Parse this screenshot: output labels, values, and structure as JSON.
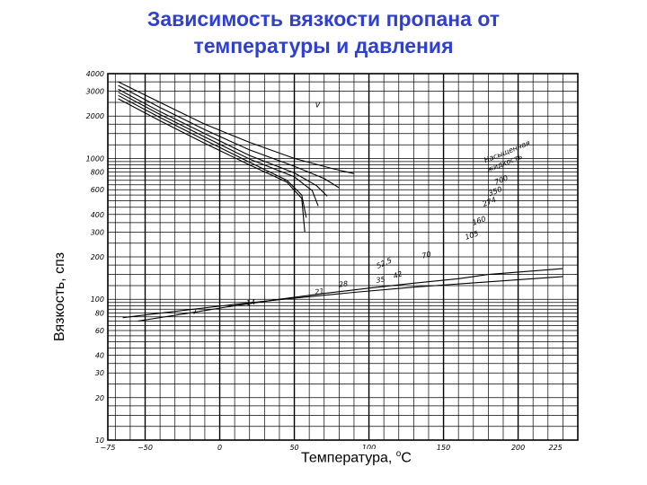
{
  "chart_data": {
    "type": "line",
    "title_line1": "Зависимость вязкости пропана от",
    "title_line2": "температуры и давления",
    "ylabel": "Вязкость, спз",
    "xlabel_main": "Температура, ",
    "xlabel_sup": "o",
    "xlabel_unit": "C",
    "y_scale": "log",
    "ylim": [
      10,
      4000
    ],
    "xlim": [
      -75,
      240
    ],
    "grid": true,
    "x_ticks": [
      {
        "v": -75,
        "label": "−75"
      },
      {
        "v": -50,
        "label": "−50"
      },
      {
        "v": 0,
        "label": "0"
      },
      {
        "v": 50,
        "label": "50"
      },
      {
        "v": 100,
        "label": "100"
      },
      {
        "v": 150,
        "label": "150"
      },
      {
        "v": 200,
        "label": "200"
      },
      {
        "v": 225,
        "label": "225"
      }
    ],
    "y_ticks": [
      {
        "v": 4000,
        "label": "4000"
      },
      {
        "v": 3000,
        "label": "3000"
      },
      {
        "v": 2000,
        "label": "2000"
      },
      {
        "v": 1000,
        "label": "1000"
      },
      {
        "v": 800,
        "label": "800"
      },
      {
        "v": 600,
        "label": "600"
      },
      {
        "v": 400,
        "label": "400"
      },
      {
        "v": 300,
        "label": "300"
      },
      {
        "v": 200,
        "label": "200"
      },
      {
        "v": 100,
        "label": "100"
      },
      {
        "v": 80,
        "label": "80"
      },
      {
        "v": 60,
        "label": "60"
      },
      {
        "v": 40,
        "label": "40"
      },
      {
        "v": 30,
        "label": "30"
      },
      {
        "v": 20,
        "label": "20"
      },
      {
        "v": 10,
        "label": "10"
      }
    ],
    "annotations": [
      {
        "text": "Насыщенная",
        "x": 178,
        "y": 930,
        "rot": -22
      },
      {
        "text": "жидкость",
        "x": 180,
        "y": 800,
        "rot": -22
      },
      {
        "text": "700",
        "x": 185,
        "y": 650,
        "rot": -22
      },
      {
        "text": "350",
        "x": 181,
        "y": 540,
        "rot": -22
      },
      {
        "text": "274",
        "x": 177,
        "y": 455,
        "rot": -22
      },
      {
        "text": "160",
        "x": 170,
        "y": 335,
        "rot": -20
      },
      {
        "text": "105",
        "x": 165,
        "y": 265,
        "rot": -18
      },
      {
        "text": "70",
        "x": 136,
        "y": 195,
        "rot": -15
      },
      {
        "text": "52,5",
        "x": 106,
        "y": 165,
        "rot": -25
      },
      {
        "text": "42",
        "x": 117,
        "y": 140,
        "rot": -20
      },
      {
        "text": "35",
        "x": 105,
        "y": 131,
        "rot": -8
      },
      {
        "text": "28",
        "x": 80,
        "y": 122,
        "rot": -8
      },
      {
        "text": "21",
        "x": 64,
        "y": 108,
        "rot": -8
      },
      {
        "text": "14",
        "x": 18,
        "y": 90,
        "rot": -8
      },
      {
        "text": "7",
        "x": -18,
        "y": 78,
        "rot": -8
      },
      {
        "text": "V",
        "x": 64,
        "y": 2300,
        "rot": 0
      }
    ],
    "series": [
      {
        "name": "",
        "x": [
          -68,
          -40,
          -10,
          20,
          50,
          75,
          90
        ],
        "y": [
          3500,
          2500,
          1750,
          1300,
          1000,
          850,
          780
        ]
      },
      {
        "name": "",
        "x": [
          -68,
          -40,
          -10,
          20,
          50,
          70,
          80
        ],
        "y": [
          3300,
          2300,
          1600,
          1150,
          880,
          720,
          620
        ]
      },
      {
        "name": "",
        "x": [
          -68,
          -40,
          -10,
          20,
          50,
          65,
          72
        ],
        "y": [
          3100,
          2150,
          1500,
          1050,
          790,
          640,
          540
        ]
      },
      {
        "name": "",
        "x": [
          -68,
          -40,
          -10,
          20,
          50,
          62,
          66
        ],
        "y": [
          2950,
          2050,
          1420,
          990,
          740,
          590,
          460
        ]
      },
      {
        "name": "",
        "x": [
          -68,
          -40,
          -10,
          20,
          45,
          55,
          58
        ],
        "y": [
          2800,
          1950,
          1350,
          940,
          700,
          550,
          380
        ]
      },
      {
        "name": "",
        "x": [
          -68,
          -40,
          -10,
          20,
          45,
          55,
          57
        ],
        "y": [
          2650,
          1850,
          1280,
          900,
          680,
          520,
          300
        ]
      },
      {
        "name": "",
        "x": [
          -55,
          -20,
          10,
          40,
          70,
          100,
          130,
          160,
          180,
          230
        ],
        "y": [
          70,
          80,
          90,
          100,
          110,
          120,
          130,
          140,
          150,
          165
        ]
      },
      {
        "name": "",
        "x": [
          -65,
          -30,
          10,
          50,
          90,
          130,
          230
        ],
        "y": [
          74,
          82,
          92,
          102,
          112,
          122,
          145
        ]
      }
    ]
  }
}
